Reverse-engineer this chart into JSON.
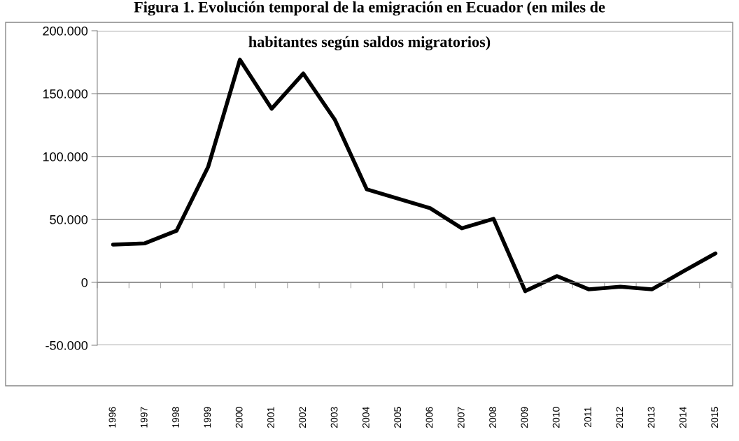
{
  "chart_data": {
    "type": "line",
    "title": "Figura 1. Evolución temporal de la emigración en Ecuador (en miles de\nhabitantes según saldos migratorios)",
    "categories": [
      "1996",
      "1997",
      "1998",
      "1999",
      "2000",
      "2001",
      "2002",
      "2003",
      "2004",
      "2005",
      "2006",
      "2007",
      "2008",
      "2009",
      "2010",
      "2011",
      "2012",
      "2013",
      "2014",
      "2015"
    ],
    "series": [
      {
        "color": "#000000",
        "values": [
          30000,
          31000,
          41000,
          92000,
          177000,
          138000,
          166000,
          129000,
          74000,
          66500,
          59000,
          43000,
          50500,
          -7000,
          5000,
          -5500,
          -3500,
          -5500,
          9000,
          23000
        ]
      }
    ],
    "ylim": [
      -50000,
      200000
    ],
    "yticks": [
      {
        "value": -50000,
        "label": "-50.000"
      },
      {
        "value": 0,
        "label": "0"
      },
      {
        "value": 50000,
        "label": "50.000"
      },
      {
        "value": 100000,
        "label": "100.000"
      },
      {
        "value": 150000,
        "label": "150.000"
      },
      {
        "value": 200000,
        "label": "200.000"
      }
    ],
    "grid": "y",
    "legend": false,
    "marker": "none",
    "line_style": "solid"
  }
}
